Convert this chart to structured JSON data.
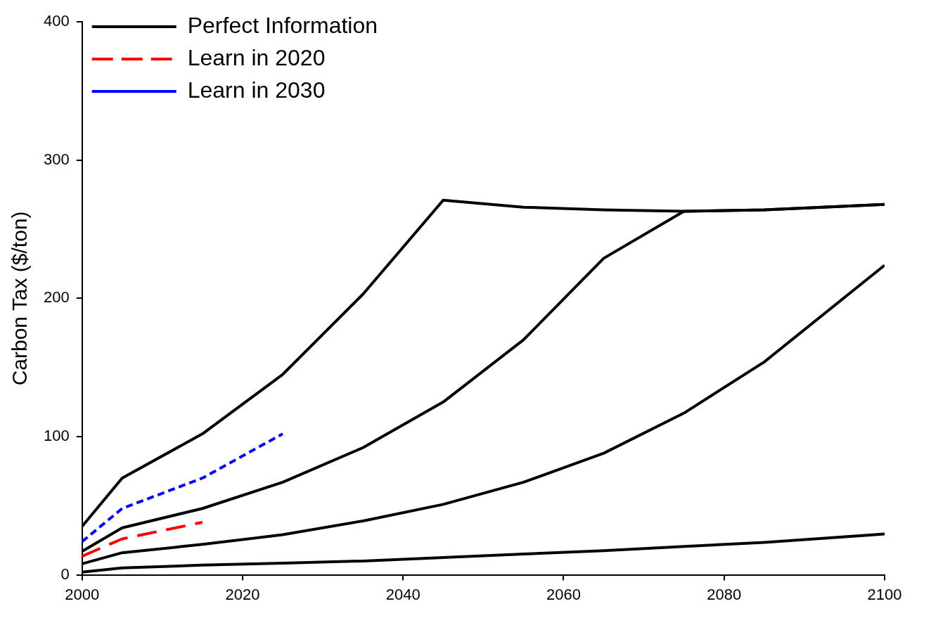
{
  "chart_data": {
    "type": "line",
    "ylabel": "Carbon Tax ($/ton)",
    "xlim": [
      2000,
      2100
    ],
    "xticks": [
      2000,
      2020,
      2040,
      2060,
      2080,
      2100
    ],
    "ylim": [
      0,
      400
    ],
    "yticks": [
      0,
      100,
      200,
      300,
      400
    ],
    "grid": false,
    "legend": "top left",
    "marker": "none",
    "series": [
      {
        "name": "Perfect Information",
        "color": "#000000",
        "line_style": "solid",
        "x": [
          2000,
          2005,
          2015,
          2025,
          2035,
          2045,
          2055,
          2065,
          2075,
          2085,
          2100
        ],
        "values": [
          35,
          70,
          102,
          145,
          203,
          271,
          266,
          264,
          263,
          264,
          268
        ]
      },
      {
        "color": "#000000",
        "line_style": "solid",
        "x": [
          2000,
          2005,
          2015,
          2025,
          2035,
          2045,
          2055,
          2065,
          2075,
          2085,
          2100
        ],
        "values": [
          17,
          34,
          48,
          67,
          92,
          125,
          170,
          229,
          263,
          264,
          268
        ]
      },
      {
        "color": "#000000",
        "line_style": "solid",
        "x": [
          2000,
          2005,
          2015,
          2025,
          2035,
          2045,
          2055,
          2065,
          2075,
          2085,
          2100
        ],
        "values": [
          8,
          16,
          22,
          29,
          39,
          51,
          67,
          88,
          117,
          154,
          224
        ]
      },
      {
        "color": "#000000",
        "line_style": "solid",
        "x": [
          2000,
          2005,
          2015,
          2025,
          2035,
          2045,
          2055,
          2065,
          2075,
          2085,
          2100
        ],
        "values": [
          2,
          5,
          7,
          8.5,
          10,
          12.5,
          15,
          17.5,
          20.5,
          23.5,
          29.5
        ]
      },
      {
        "name": "Learn in 2020",
        "color": "#ff0000",
        "line_style": "dashed",
        "x": [
          2000,
          2005,
          2015
        ],
        "values": [
          13.5,
          26,
          38
        ]
      },
      {
        "name": "Learn in 2030",
        "color": "#0000ff",
        "line_style": "dotted",
        "x": [
          2000,
          2005,
          2015,
          2025
        ],
        "values": [
          24,
          48,
          70,
          102
        ]
      }
    ]
  }
}
